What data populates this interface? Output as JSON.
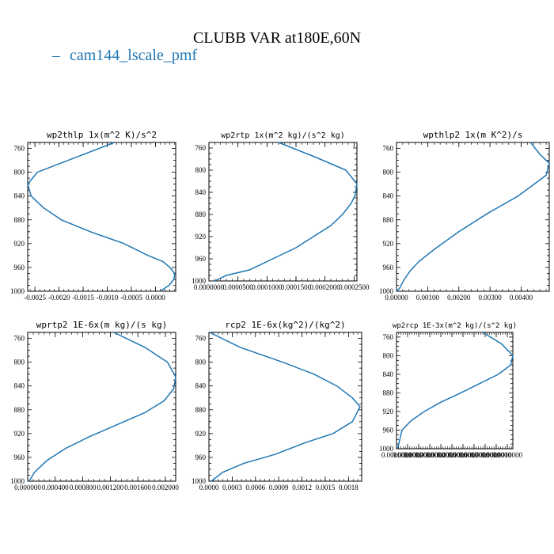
{
  "figure": {
    "title": "CLUBB VAR at180E,60N",
    "legend": {
      "label": "cam144_lscale_pmf",
      "color": "#1f77b4"
    }
  },
  "chart_data": [
    {
      "type": "line",
      "title": "wp2thlp   1x(m^2 K)/s^2",
      "series": [
        {
          "name": "cam144_lscale_pmf",
          "color": "#1f77b4",
          "x": [
            -0.00085,
            -0.00165,
            -0.00245,
            -0.00265,
            -0.00258,
            -0.00232,
            -0.00195,
            -0.00135,
            -0.00065,
            -0.00015,
            0.00015,
            0.0003,
            0.0004,
            0.00038,
            0.00028,
            0.0001
          ],
          "y": [
            750,
            775,
            800,
            820,
            840,
            860,
            880,
            900,
            920,
            940,
            950,
            960,
            970,
            980,
            990,
            1000
          ]
        }
      ],
      "xlim": [
        -0.00265,
        0.00042
      ],
      "ylim": [
        1000,
        750
      ],
      "xticks": [
        -0.0025,
        -0.002,
        -0.0015,
        -0.001,
        -0.0005,
        0.0
      ],
      "xtick_labels": [
        "-0.0025",
        "-0.0020",
        "-0.0015",
        "-0.0010",
        "-0.0005",
        "0.0000"
      ],
      "yticks": [
        760,
        800,
        840,
        880,
        920,
        960,
        1000
      ],
      "ytick_labels": [
        "760",
        "800",
        "840",
        "880",
        "920",
        "960",
        "1000"
      ]
    },
    {
      "type": "line",
      "title": "wp2rtp  1x(m^2 kg)/(s^2 kg)",
      "series": [
        {
          "name": "cam144_lscale_pmf",
          "color": "#1f77b4",
          "x": [
            0.00012,
            0.00018,
            0.000236,
            0.000255,
            0.000252,
            0.000245,
            0.00023,
            0.00021,
            0.00018,
            0.00015,
            0.00011,
            7e-05,
            3e-05,
            1e-05
          ],
          "y": [
            750,
            775,
            800,
            825,
            845,
            860,
            880,
            900,
            920,
            940,
            960,
            980,
            990,
            1000
          ]
        }
      ],
      "xlim": [
        0.0,
        0.000255
      ],
      "ylim": [
        1000,
        750
      ],
      "xticks": [
        0.0,
        5e-05,
        0.0001,
        0.00015,
        0.0002,
        0.00025
      ],
      "xtick_labels": [
        "0.0000000",
        "0.0000500",
        "0.0001000",
        "0.0001500",
        "0.0002000",
        "0.0002500"
      ],
      "yticks": [
        760,
        800,
        840,
        880,
        920,
        960,
        1000
      ],
      "ytick_labels": [
        "760",
        "800",
        "840",
        "880",
        "920",
        "960",
        "1000"
      ]
    },
    {
      "type": "line",
      "title": "wpthlp2  1x(m K^2)/s",
      "series": [
        {
          "name": "cam144_lscale_pmf",
          "color": "#1f77b4",
          "x": [
            0.0043,
            0.0046,
            0.0049,
            0.0048,
            0.0039,
            0.0029,
            0.002,
            0.0012,
            0.00072,
            0.00045,
            0.00025,
            0.0001,
            1e-05
          ],
          "y": [
            750,
            770,
            785,
            805,
            840,
            870,
            900,
            930,
            950,
            965,
            980,
            995,
            1000
          ]
        }
      ],
      "xlim": [
        0.0,
        0.0049
      ],
      "ylim": [
        1000,
        750
      ],
      "xticks": [
        0.0,
        0.001,
        0.002,
        0.003,
        0.004
      ],
      "xtick_labels": [
        "0.00000",
        "0.00100",
        "0.00200",
        "0.00300",
        "0.00400"
      ],
      "yticks": [
        760,
        800,
        840,
        880,
        920,
        960,
        1000
      ],
      "ytick_labels": [
        "760",
        "800",
        "840",
        "880",
        "920",
        "960",
        "1000"
      ]
    },
    {
      "type": "line",
      "title": "wprtp2  1E-6x(m kg)/(s kg)",
      "series": [
        {
          "name": "cam144_lscale_pmf",
          "color": "#1f77b4",
          "x": [
            0.00125,
            0.0017,
            0.00203,
            0.00215,
            0.00212,
            0.00198,
            0.0017,
            0.0013,
            0.0009,
            0.00055,
            0.00028,
            0.0001,
            2e-05
          ],
          "y": [
            750,
            775,
            800,
            825,
            845,
            865,
            885,
            905,
            925,
            945,
            965,
            985,
            1000
          ]
        }
      ],
      "xlim": [
        0.0,
        0.00215
      ],
      "ylim": [
        1000,
        750
      ],
      "xticks": [
        0.0,
        0.0004,
        0.0008,
        0.0012,
        0.0016,
        0.002
      ],
      "xtick_labels": [
        "0.000000",
        "0.000400",
        "0.000800",
        "0.001200",
        "0.001600",
        "0.002000"
      ],
      "yticks": [
        760,
        800,
        840,
        880,
        920,
        960,
        1000
      ],
      "ytick_labels": [
        "760",
        "800",
        "840",
        "880",
        "920",
        "960",
        "1000"
      ]
    },
    {
      "type": "line",
      "title": "rcp2  1E-6x(kg^2)/(kg^2)",
      "series": [
        {
          "name": "cam144_lscale_pmf",
          "color": "#1f77b4",
          "x": [
            1e-05,
            0.0004,
            0.00095,
            0.00135,
            0.00165,
            0.00185,
            0.00195,
            0.00185,
            0.0016,
            0.00125,
            0.00085,
            0.00045,
            0.00018,
            3e-05
          ],
          "y": [
            750,
            775,
            800,
            820,
            840,
            860,
            875,
            900,
            920,
            935,
            955,
            970,
            985,
            1000
          ]
        }
      ],
      "xlim": [
        0.0,
        0.00197
      ],
      "ylim": [
        1000,
        750
      ],
      "xticks": [
        0.0,
        0.0003,
        0.0006,
        0.0009,
        0.0012,
        0.0015,
        0.0018
      ],
      "xtick_labels": [
        "0.0000",
        "0.0003",
        "0.0006",
        "0.0009",
        "0.0012",
        "0.0015",
        "0.0018"
      ],
      "yticks": [
        760,
        800,
        840,
        880,
        920,
        960,
        1000
      ],
      "ytick_labels": [
        "760",
        "800",
        "840",
        "880",
        "920",
        "960",
        "1000"
      ]
    },
    {
      "type": "line",
      "title": "wp2rcp  1E-3x(m^2 kg)/(s^2 kg)",
      "series": [
        {
          "name": "cam144_lscale_pmf",
          "color": "#1f77b4",
          "x": [
            0.00078,
            0.00095,
            0.00105,
            0.00103,
            0.00092,
            0.00075,
            0.00058,
            0.0004,
            0.00025,
            0.00013,
            5e-05,
            1e-05
          ],
          "y": [
            750,
            775,
            800,
            820,
            840,
            860,
            880,
            900,
            920,
            940,
            960,
            1000
          ]
        }
      ],
      "xlim": [
        0.0,
        0.00105
      ],
      "ylim": [
        1000,
        750
      ],
      "xticks": [
        0.0,
        0.0001,
        0.0002,
        0.0003,
        0.0004,
        0.0005,
        0.0006,
        0.0007,
        0.0008,
        0.0009,
        0.001
      ],
      "xtick_labels": [
        "0.0000000",
        "0.0001000",
        "0.0002000",
        "0.0003000",
        "0.0004000",
        "0.0005000",
        "0.0006000",
        "0.0007000",
        "0.0008000",
        "0.0009000",
        "0.0010000"
      ],
      "yticks": [
        760,
        800,
        840,
        880,
        920,
        960,
        1000
      ],
      "ytick_labels": [
        "760",
        "800",
        "840",
        "880",
        "920",
        "960",
        "1000"
      ]
    }
  ]
}
